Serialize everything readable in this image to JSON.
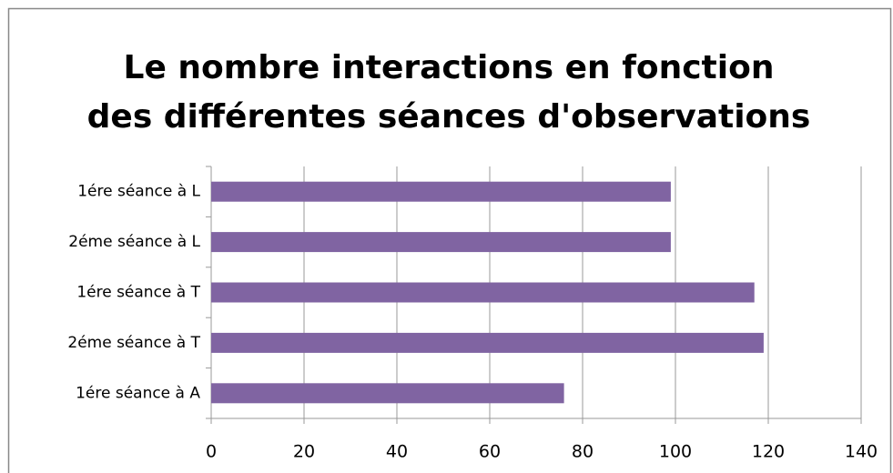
{
  "chart_data": {
    "type": "bar",
    "orientation": "horizontal",
    "title": [
      "Le nombre interactions en fonction",
      "des différentes séances d'observations"
    ],
    "categories": [
      "1ére séance à L",
      "2éme séance à L",
      "1ére séance à T",
      "2éme séance à T",
      "1ére séance à A"
    ],
    "values": [
      99,
      99,
      117,
      119,
      76
    ],
    "color": "#8064a2",
    "xlim": [
      0,
      140
    ],
    "xticks": [
      0,
      20,
      40,
      60,
      80,
      100,
      120,
      140
    ],
    "grid": true
  }
}
